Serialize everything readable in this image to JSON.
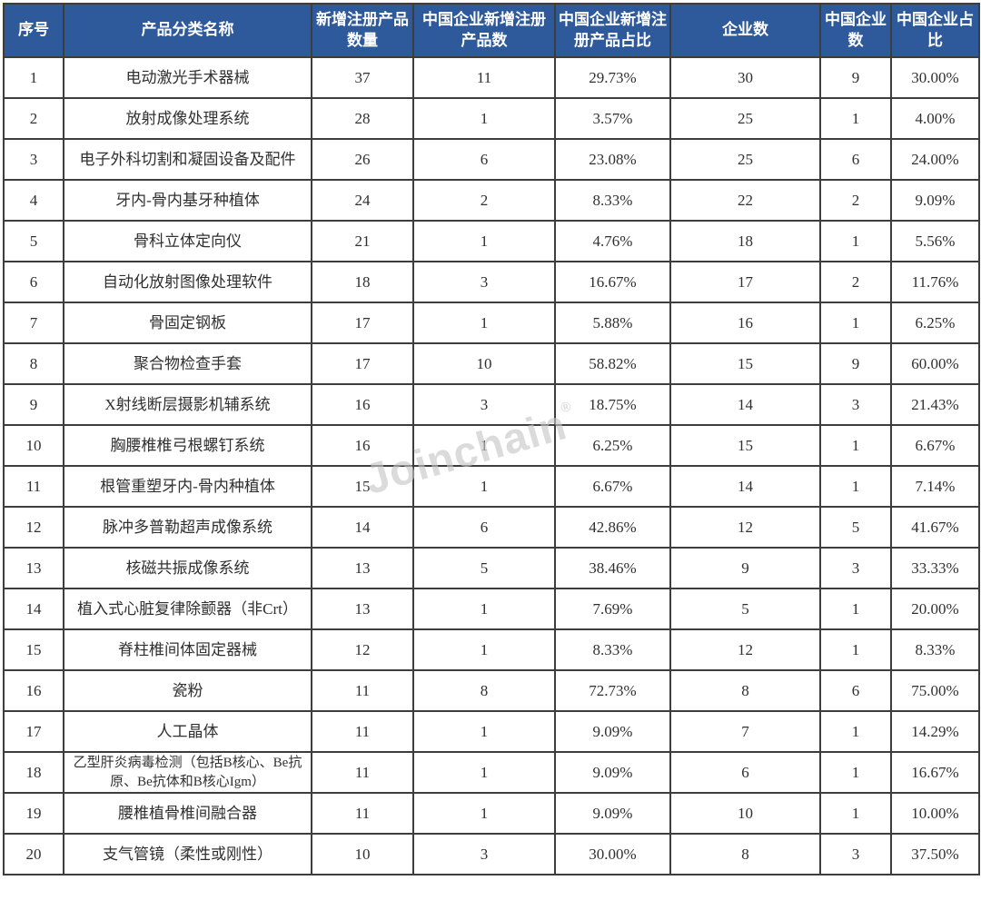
{
  "chart_data": {
    "type": "table",
    "columns": [
      "序号",
      "产品分类名称",
      "新增注册产品数量",
      "中国企业新增注册产品数",
      "中国企业新增注册产品占比",
      "企业数",
      "中国企业数",
      "中国企业占比"
    ],
    "rows": [
      [
        "1",
        "电动激光手术器械",
        "37",
        "11",
        "29.73%",
        "30",
        "9",
        "30.00%"
      ],
      [
        "2",
        "放射成像处理系统",
        "28",
        "1",
        "3.57%",
        "25",
        "1",
        "4.00%"
      ],
      [
        "3",
        "电子外科切割和凝固设备及配件",
        "26",
        "6",
        "23.08%",
        "25",
        "6",
        "24.00%"
      ],
      [
        "4",
        "牙内-骨内基牙种植体",
        "24",
        "2",
        "8.33%",
        "22",
        "2",
        "9.09%"
      ],
      [
        "5",
        "骨科立体定向仪",
        "21",
        "1",
        "4.76%",
        "18",
        "1",
        "5.56%"
      ],
      [
        "6",
        "自动化放射图像处理软件",
        "18",
        "3",
        "16.67%",
        "17",
        "2",
        "11.76%"
      ],
      [
        "7",
        "骨固定钢板",
        "17",
        "1",
        "5.88%",
        "16",
        "1",
        "6.25%"
      ],
      [
        "8",
        "聚合物检查手套",
        "17",
        "10",
        "58.82%",
        "15",
        "9",
        "60.00%"
      ],
      [
        "9",
        "X射线断层摄影机辅系统",
        "16",
        "3",
        "18.75%",
        "14",
        "3",
        "21.43%"
      ],
      [
        "10",
        "胸腰椎椎弓根螺钉系统",
        "16",
        "1",
        "6.25%",
        "15",
        "1",
        "6.67%"
      ],
      [
        "11",
        "根管重塑牙内-骨内种植体",
        "15",
        "1",
        "6.67%",
        "14",
        "1",
        "7.14%"
      ],
      [
        "12",
        "脉冲多普勒超声成像系统",
        "14",
        "6",
        "42.86%",
        "12",
        "5",
        "41.67%"
      ],
      [
        "13",
        "核磁共振成像系统",
        "13",
        "5",
        "38.46%",
        "9",
        "3",
        "33.33%"
      ],
      [
        "14",
        "植入式心脏复律除颤器（非Crt）",
        "13",
        "1",
        "7.69%",
        "5",
        "1",
        "20.00%"
      ],
      [
        "15",
        "脊柱椎间体固定器械",
        "12",
        "1",
        "8.33%",
        "12",
        "1",
        "8.33%"
      ],
      [
        "16",
        "瓷粉",
        "11",
        "8",
        "72.73%",
        "8",
        "6",
        "75.00%"
      ],
      [
        "17",
        "人工晶体",
        "11",
        "1",
        "9.09%",
        "7",
        "1",
        "14.29%"
      ],
      [
        "18",
        "乙型肝炎病毒检测（包括B核心、Be抗原、Be抗体和B核心Igm）",
        "11",
        "1",
        "9.09%",
        "6",
        "1",
        "16.67%"
      ],
      [
        "19",
        "腰椎植骨椎间融合器",
        "11",
        "1",
        "9.09%",
        "10",
        "1",
        "10.00%"
      ],
      [
        "20",
        "支气管镜（柔性或刚性）",
        "10",
        "3",
        "30.00%",
        "8",
        "3",
        "37.50%"
      ]
    ]
  },
  "watermark": {
    "text": "Joinchain",
    "registered_mark": "®"
  },
  "colors": {
    "header_bg": "#2e5a9c",
    "header_text": "#ffffff",
    "grid_border": "#3d3d3d",
    "cell_text": "#303030",
    "watermark": "#c6c6c6"
  }
}
